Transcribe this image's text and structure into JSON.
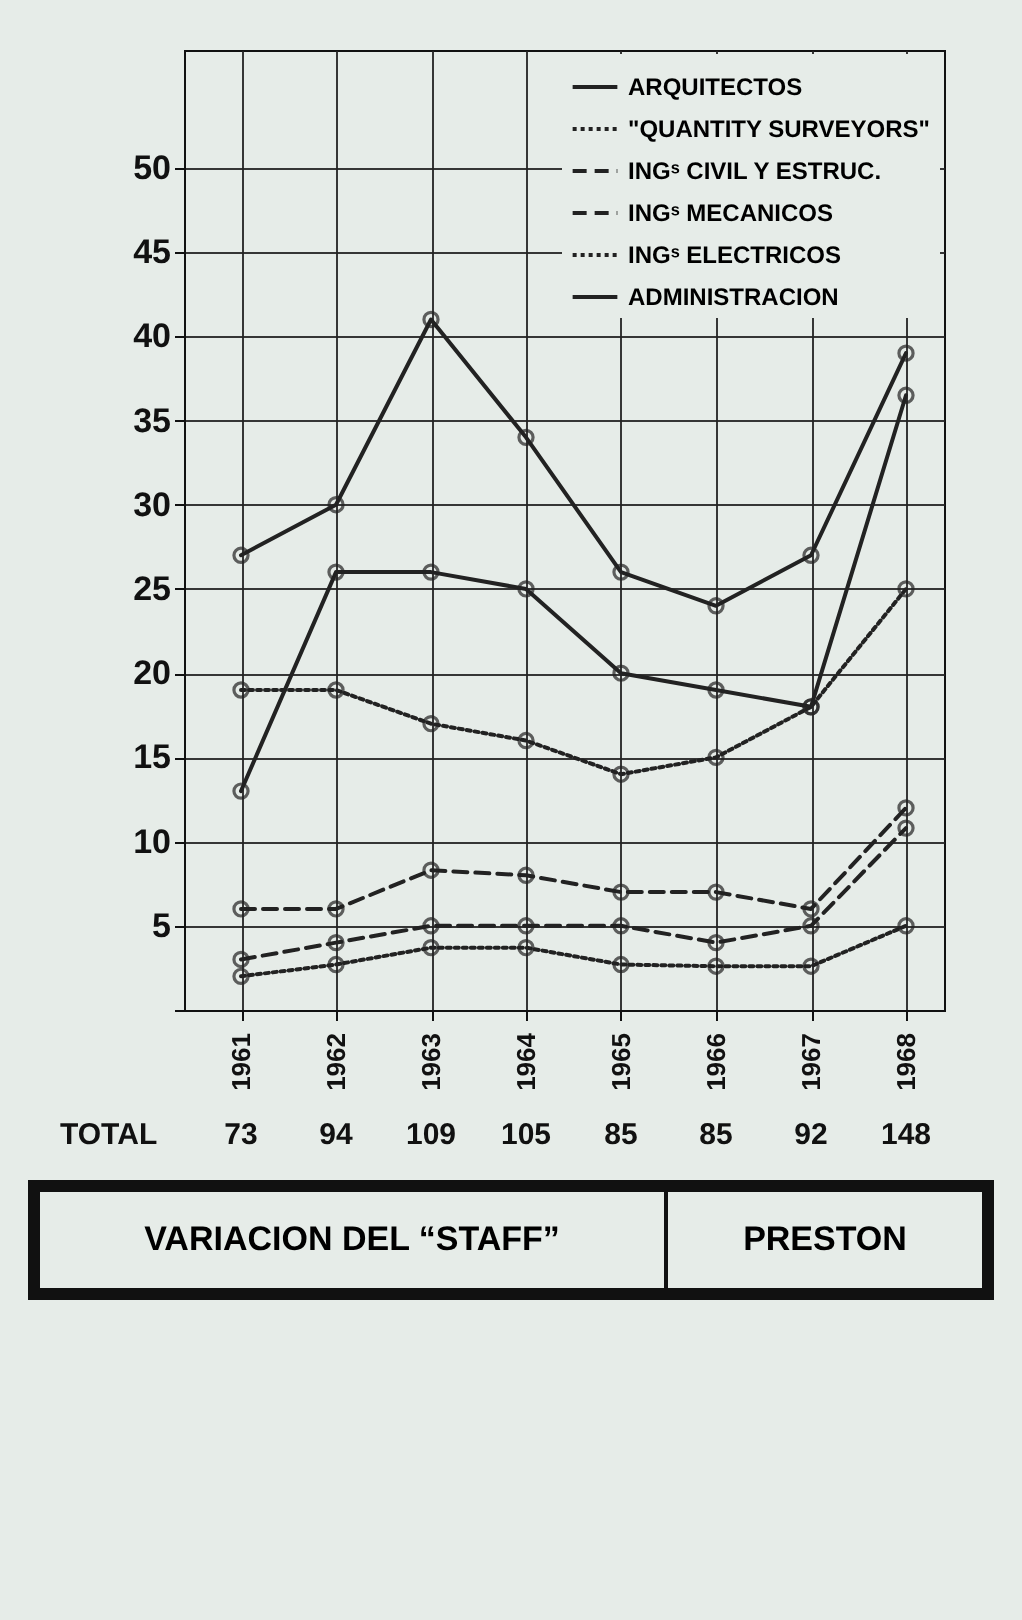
{
  "chart_data": {
    "type": "line",
    "title": "VARIACION DEL “STAFF”",
    "subtitle": "PRESTON",
    "categories": [
      "1961",
      "1962",
      "1963",
      "1964",
      "1965",
      "1966",
      "1967",
      "1968"
    ],
    "series": [
      {
        "name": "ARQUITECTOS",
        "color": "#222222",
        "line_style": "solid",
        "values": [
          27,
          30,
          41,
          34,
          26,
          24,
          27,
          39
        ]
      },
      {
        "name": "\"QUANTITY SURVEYORS\"",
        "color": "#222222",
        "line_style": "dotted",
        "values": [
          19,
          19,
          17,
          16,
          14,
          15,
          18,
          25
        ]
      },
      {
        "name": "INGˢ CIVIL Y ESTRUC.",
        "color": "#222222",
        "line_style": "dashed",
        "values": [
          6,
          6,
          8.3,
          8,
          7,
          7,
          6,
          12
        ]
      },
      {
        "name": "INGˢ MECANICOS",
        "color": "#222222",
        "line_style": "dashed",
        "values": [
          3,
          4,
          5,
          5,
          5,
          4,
          5,
          10.8
        ]
      },
      {
        "name": "INGˢ ELECTRICOS",
        "color": "#222222",
        "line_style": "dotted",
        "values": [
          2,
          2.7,
          3.7,
          3.7,
          2.7,
          2.6,
          2.6,
          5
        ]
      },
      {
        "name": "ADMINISTRACION",
        "color": "#222222",
        "line_style": "solid",
        "values": [
          13,
          26,
          26,
          25,
          20,
          19,
          18,
          36.5
        ]
      }
    ],
    "ylim": [
      0,
      57
    ],
    "yticks": [
      {
        "value": 0,
        "label": null
      },
      5,
      10,
      15,
      20,
      25,
      30,
      35,
      40,
      45,
      50
    ],
    "grid": true,
    "legend": "top right",
    "marker": "circle",
    "annotations": [
      "TOTAL",
      "73",
      "94",
      "109",
      "105",
      "85",
      "85",
      "92",
      "148"
    ]
  }
}
